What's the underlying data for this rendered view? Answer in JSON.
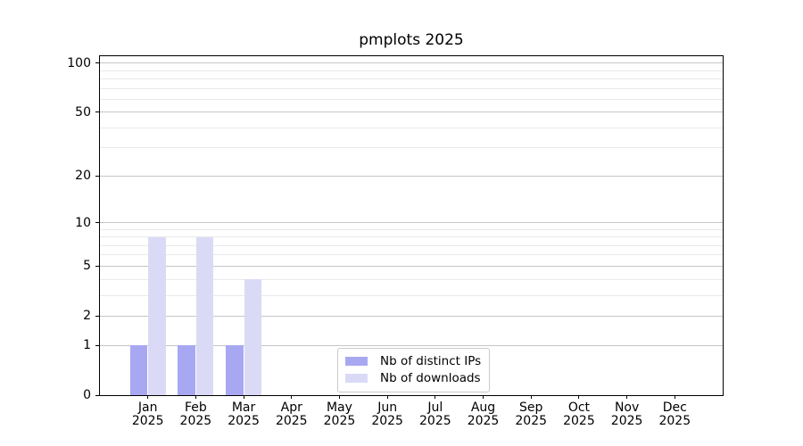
{
  "title": "pmplots 2025",
  "chart_data": {
    "type": "bar",
    "title": "pmplots 2025",
    "categories": [
      "Jan",
      "Feb",
      "Mar",
      "Apr",
      "May",
      "Jun",
      "Jul",
      "Aug",
      "Sep",
      "Oct",
      "Nov",
      "Dec"
    ],
    "category_year": "2025",
    "series": [
      {
        "name": "Nb of distinct IPs",
        "color": "#a8a8f2",
        "values": [
          1,
          1,
          1,
          0,
          0,
          0,
          0,
          0,
          0,
          0,
          0,
          0
        ]
      },
      {
        "name": "Nb of downloads",
        "color": "#dadaf7",
        "values": [
          8,
          8,
          4,
          0,
          0,
          0,
          0,
          0,
          0,
          0,
          0,
          0
        ]
      }
    ],
    "xlabel": "",
    "ylabel": "",
    "yscale": "log1p",
    "ylim": [
      0,
      110
    ],
    "yticks": [
      0,
      1,
      2,
      5,
      10,
      20,
      50,
      100
    ],
    "major_gridlines": [
      1,
      2,
      5,
      10,
      20,
      50,
      100
    ],
    "minor_gridlines": [
      3,
      4,
      6,
      7,
      8,
      9,
      30,
      40,
      60,
      70,
      80,
      90
    ],
    "grid": true,
    "legend_position": "inside-bottom-center"
  },
  "style": {
    "major_grid_color": "#c6c6c6",
    "minor_grid_color": "#e9e9e9",
    "spine_color": "#000000",
    "background_color": "#ffffff"
  }
}
